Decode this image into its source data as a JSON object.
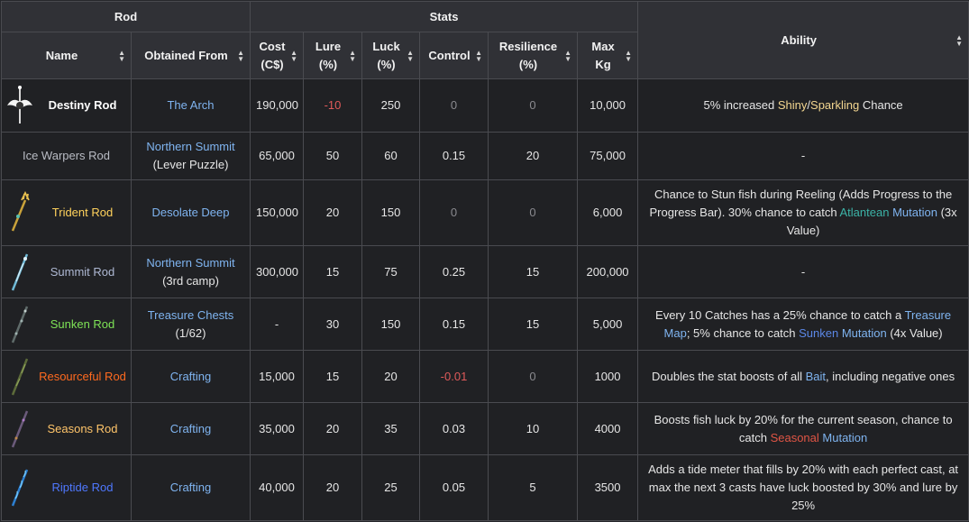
{
  "colors": {
    "background": "#26272b",
    "header_bg": "#303136",
    "cell_bg": "#202124",
    "border": "#4a4b50",
    "link": "#7fb4f0",
    "negative": "#e05a5a"
  },
  "header": {
    "group_rod": "Rod",
    "group_stats": "Stats",
    "col_name": "Name",
    "col_obtained": "Obtained From",
    "col_cost_1": "Cost",
    "col_cost_2": "(C$)",
    "col_lure_1": "Lure",
    "col_lure_2": "(%)",
    "col_luck_1": "Luck",
    "col_luck_2": "(%)",
    "col_control": "Control",
    "col_res_1": "Resilience",
    "col_res_2": "(%)",
    "col_max_1": "Max",
    "col_max_2": "Kg",
    "col_ability": "Ability",
    "sort_icon": "▲▼"
  },
  "rows": [
    {
      "name": "Destiny Rod",
      "name_color": "#ffffff",
      "icon": "destiny-rod-icon",
      "source": "The Arch",
      "source_sub": "",
      "cost": "190,000",
      "lure": "-10",
      "luck": "250",
      "control": "0",
      "resilience": "0",
      "max_kg": "10,000",
      "ability": [
        "5% increased ",
        "Shiny",
        "/",
        "Sparkling",
        " Chance"
      ]
    },
    {
      "name": "Ice Warpers Rod",
      "name_color": "#b9bcc4",
      "icon": "",
      "source": "Northern Summit",
      "source_sub": "(Lever Puzzle)",
      "cost": "65,000",
      "lure": "50",
      "luck": "60",
      "control": "0.15",
      "resilience": "20",
      "max_kg": "75,000",
      "ability": [
        "-"
      ]
    },
    {
      "name": "Trident Rod",
      "name_color": "#ffd25c",
      "icon": "trident-rod-icon",
      "source": "Desolate Deep",
      "source_sub": "",
      "cost": "150,000",
      "lure": "20",
      "luck": "150",
      "control": "0",
      "resilience": "0",
      "max_kg": "6,000",
      "ability": [
        "Chance to Stun fish during Reeling (Adds Progress to the Progress Bar). 30% chance to catch ",
        "Atlantean",
        " ",
        "Mutation",
        " (3x Value)"
      ]
    },
    {
      "name": "Summit Rod",
      "name_color": "#aeb8d3",
      "icon": "summit-rod-icon",
      "source": "Northern Summit",
      "source_sub": "(3rd camp)",
      "cost": "300,000",
      "lure": "15",
      "luck": "75",
      "control": "0.25",
      "resilience": "15",
      "max_kg": "200,000",
      "ability": [
        "-"
      ]
    },
    {
      "name": "Sunken Rod",
      "name_color": "#7ee356",
      "icon": "sunken-rod-icon",
      "source": "Treasure Chests",
      "source_sub": "(1/62)",
      "cost": "-",
      "lure": "30",
      "luck": "150",
      "control": "0.15",
      "resilience": "15",
      "max_kg": "5,000",
      "ability": [
        "Every 10 Catches has a 25% chance to catch a ",
        "Treasure Map",
        "; 5% chance to catch ",
        "Sunken",
        " ",
        "Mutation",
        " (4x Value)"
      ]
    },
    {
      "name": "Resourceful Rod",
      "name_color": "#ff6a1f",
      "icon": "resourceful-rod-icon",
      "source": "Crafting",
      "source_sub": "",
      "cost": "15,000",
      "lure": "15",
      "luck": "20",
      "control": "-0.01",
      "resilience": "0",
      "max_kg": "1000",
      "ability": [
        "Doubles the stat boosts of all ",
        "Bait",
        ", including negative ones"
      ]
    },
    {
      "name": "Seasons Rod",
      "name_color": "#ffc56a",
      "icon": "seasons-rod-icon",
      "source": "Crafting",
      "source_sub": "",
      "cost": "35,000",
      "lure": "20",
      "luck": "35",
      "control": "0.03",
      "resilience": "10",
      "max_kg": "4000",
      "ability": [
        "Boosts fish luck by 20% for the current season, chance to catch ",
        "Seasonal",
        " ",
        "Mutation"
      ]
    },
    {
      "name": "Riptide Rod",
      "name_color": "#4f78ff",
      "icon": "riptide-rod-icon",
      "source": "Crafting",
      "source_sub": "",
      "cost": "40,000",
      "lure": "20",
      "luck": "25",
      "control": "0.05",
      "resilience": "5",
      "max_kg": "3500",
      "ability": [
        "Adds a tide meter that fills by 20% with each perfect cast, at max the next 3 casts have luck boosted by 30% and lure by 25%"
      ]
    }
  ]
}
